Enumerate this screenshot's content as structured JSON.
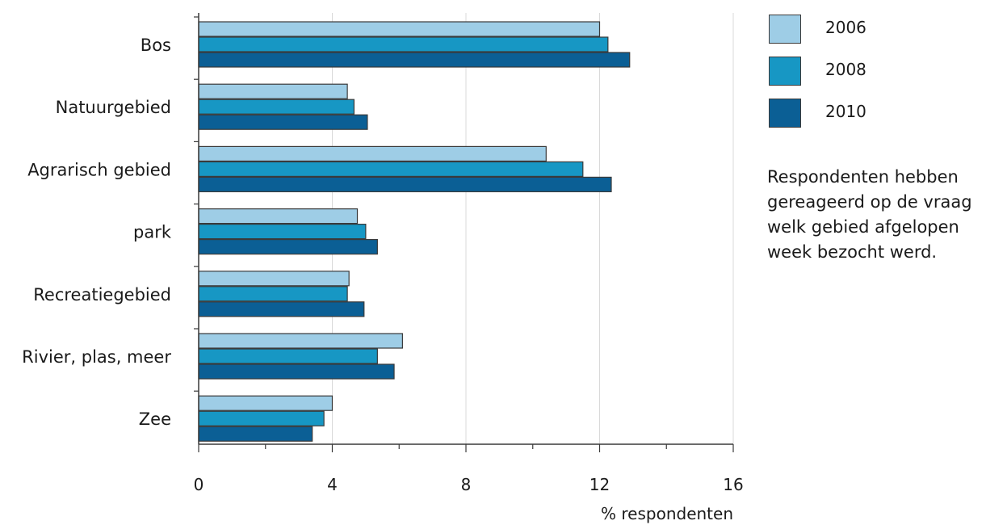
{
  "chart_data": {
    "type": "bar",
    "orientation": "horizontal",
    "categories": [
      "Bos",
      "Natuurgebied",
      "Agrarisch gebied",
      "park",
      "Recreatiegebied",
      "Rivier, plas, meer",
      "Zee"
    ],
    "series": [
      {
        "name": "2006",
        "color": "#9ecde6",
        "values": [
          12.0,
          4.45,
          10.4,
          4.75,
          4.5,
          6.1,
          4.0
        ]
      },
      {
        "name": "2008",
        "color": "#1797c4",
        "values": [
          12.25,
          4.65,
          11.5,
          5.0,
          4.45,
          5.35,
          3.75
        ]
      },
      {
        "name": "2010",
        "color": "#0b5f95",
        "values": [
          12.9,
          5.05,
          12.35,
          5.35,
          4.95,
          5.85,
          3.4
        ]
      }
    ],
    "xlabel": "% respondenten",
    "xlim": [
      0,
      16
    ],
    "xticks": [
      0,
      4,
      8,
      12,
      16
    ],
    "grid": "vertical",
    "legend": "right"
  },
  "note": "Respondenten hebben gereageerd op de vraag welk gebied afgelopen week bezocht werd."
}
